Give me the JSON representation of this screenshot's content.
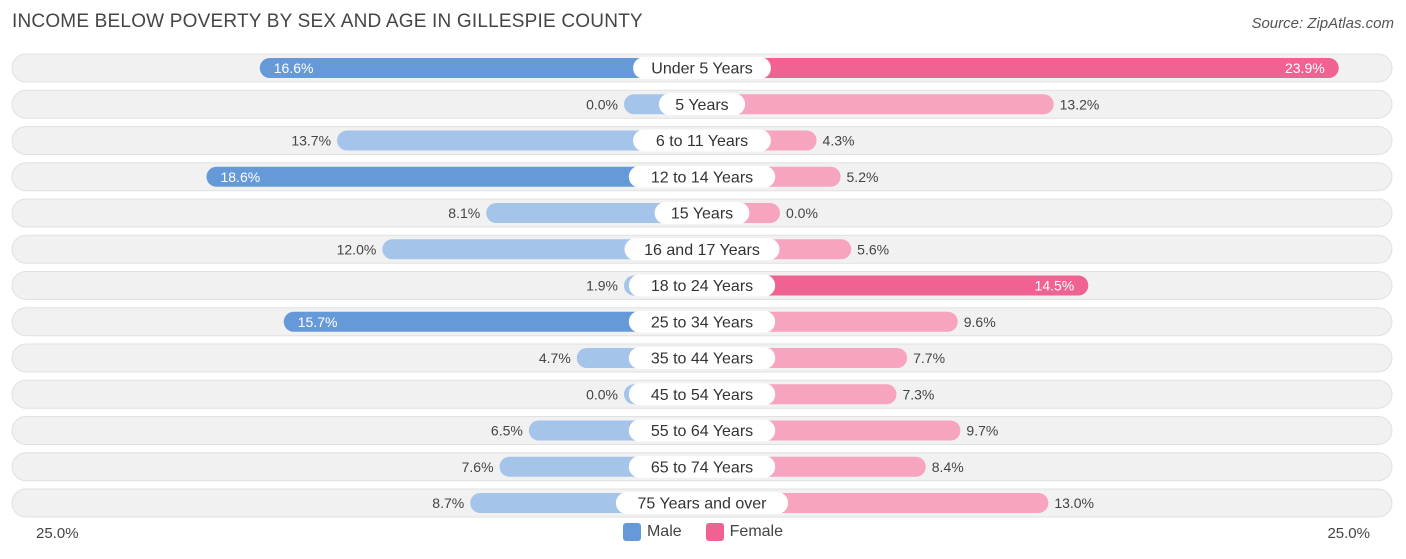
{
  "title": "INCOME BELOW POVERTY BY SEX AND AGE IN GILLESPIE COUNTY",
  "source": "Source: ZipAtlas.com",
  "colors": {
    "male_strong": "#6699d8",
    "male_light": "#a5c4ea",
    "female_strong": "#f06292",
    "female_light": "#f7a4bf",
    "row_bg": "#f1f1f1",
    "row_border": "#e1e1e1"
  },
  "legend": {
    "male_label": "Male",
    "female_label": "Female"
  },
  "axis": {
    "left_label": "25.0%",
    "right_label": "25.0%"
  },
  "chart_data": {
    "type": "bar",
    "orientation": "horizontal-diverging",
    "title": "INCOME BELOW POVERTY BY SEX AND AGE IN GILLESPIE COUNTY",
    "categories": [
      "Under 5 Years",
      "5 Years",
      "6 to 11 Years",
      "12 to 14 Years",
      "15 Years",
      "16 and 17 Years",
      "18 to 24 Years",
      "25 to 34 Years",
      "35 to 44 Years",
      "45 to 54 Years",
      "55 to 64 Years",
      "65 to 74 Years",
      "75 Years and over"
    ],
    "series": [
      {
        "name": "Male",
        "values": [
          16.6,
          0.0,
          13.7,
          18.6,
          8.1,
          12.0,
          1.9,
          15.7,
          4.7,
          0.0,
          6.5,
          7.6,
          8.7
        ]
      },
      {
        "name": "Female",
        "values": [
          23.9,
          13.2,
          4.3,
          5.2,
          0.0,
          5.6,
          14.5,
          9.6,
          7.7,
          7.3,
          9.7,
          8.4,
          13.0
        ]
      }
    ],
    "value_labels": {
      "Male": [
        "16.6%",
        "0.0%",
        "13.7%",
        "18.6%",
        "8.1%",
        "12.0%",
        "1.9%",
        "15.7%",
        "4.7%",
        "0.0%",
        "6.5%",
        "7.6%",
        "8.7%"
      ],
      "Female": [
        "23.9%",
        "13.2%",
        "4.3%",
        "5.2%",
        "0.0%",
        "5.6%",
        "14.5%",
        "9.6%",
        "7.7%",
        "7.3%",
        "9.7%",
        "8.4%",
        "13.0%"
      ]
    },
    "xlim": [
      -25,
      25
    ],
    "xlabel_left": "25.0%",
    "xlabel_right": "25.0%",
    "legend_position": "bottom-center"
  }
}
